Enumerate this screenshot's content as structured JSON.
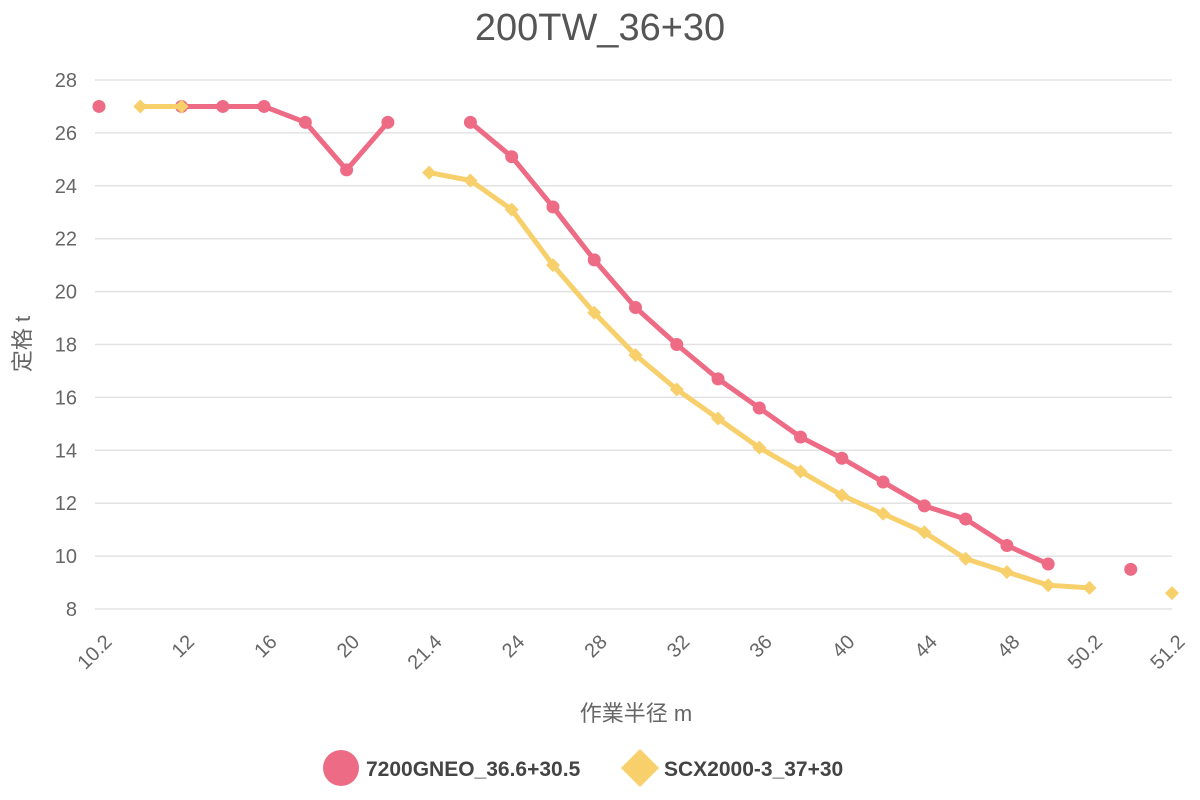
{
  "chart_data": {
    "type": "line",
    "title": "200TW_36+30",
    "xlabel": "作業半径 m",
    "ylabel": "定格 t",
    "categories": [
      "10.2",
      "",
      "12",
      "",
      "16",
      "",
      "20",
      "",
      "21.4",
      "",
      "24",
      "",
      "28",
      "",
      "32",
      "",
      "36",
      "",
      "40",
      "",
      "44",
      "",
      "48",
      "",
      "50.2",
      "",
      "51.2"
    ],
    "ylim": [
      8,
      28
    ],
    "yticks": [
      8,
      10,
      12,
      14,
      16,
      18,
      20,
      22,
      24,
      26,
      28
    ],
    "grid": true,
    "legend_position": "bottom",
    "series": [
      {
        "name": "7200GNEO_36.6+30.5",
        "color": "#ED6B84",
        "marker": "circle",
        "values": [
          27,
          null,
          27,
          27,
          27,
          26.4,
          24.6,
          26.4,
          null,
          26.4,
          25.1,
          23.2,
          21.2,
          19.4,
          18.0,
          16.7,
          15.6,
          14.5,
          13.7,
          12.8,
          11.9,
          11.4,
          10.4,
          9.7,
          null,
          9.5,
          null
        ]
      },
      {
        "name": "SCX2000-3_37+30",
        "color": "#F7CF6B",
        "marker": "diamond",
        "values": [
          null,
          27,
          27,
          null,
          null,
          null,
          null,
          null,
          24.5,
          24.2,
          23.1,
          21.0,
          19.2,
          17.6,
          16.3,
          15.2,
          14.1,
          13.2,
          12.3,
          11.6,
          10.9,
          9.9,
          9.4,
          8.9,
          8.8,
          null,
          8.6
        ]
      }
    ]
  }
}
